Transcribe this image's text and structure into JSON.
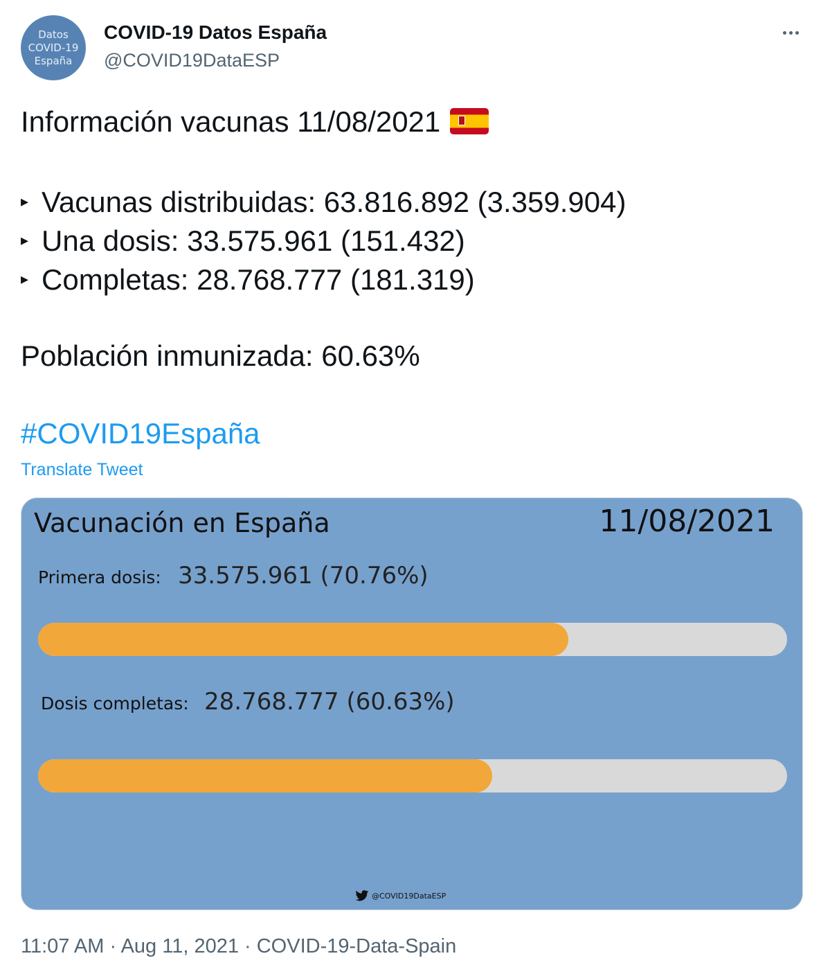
{
  "account": {
    "avatar_lines": [
      "Datos",
      "COVID-19",
      "España"
    ],
    "display_name": "COVID-19 Datos España",
    "handle": "@COVID19DataESP"
  },
  "tweet": {
    "title": "Información vacunas 11/08/2021",
    "flag_icon": "spain-flag-emoji",
    "bullet_glyph": "▸",
    "lines": [
      "Vacunas distribuidas: 63.816.892 (3.359.904)",
      "Una dosis: 33.575.961 (151.432)",
      "Completas: 28.768.777 (181.319)"
    ],
    "poblacion": "Población inmunizada: 60.63%",
    "hashtag": "#COVID19España",
    "translate": "Translate Tweet"
  },
  "card": {
    "title": "Vacunación en España",
    "date": "11/08/2021",
    "primera_label": "Primera dosis:",
    "primera_value": "33.575.961 (70.76%)",
    "primera_pct": 70.76,
    "completas_label": "Dosis completas:",
    "completas_value": "28.768.777 (60.63%)",
    "completas_pct": 60.63,
    "bar_color": "#f2a73a",
    "track_color": "#d9d9d9",
    "background": "#77a1cd",
    "watermark": "@COVID19DataESP"
  },
  "meta": {
    "time": "11:07 AM",
    "separator": " · ",
    "date": "Aug 11, 2021",
    "source": "COVID-19-Data-Spain"
  }
}
